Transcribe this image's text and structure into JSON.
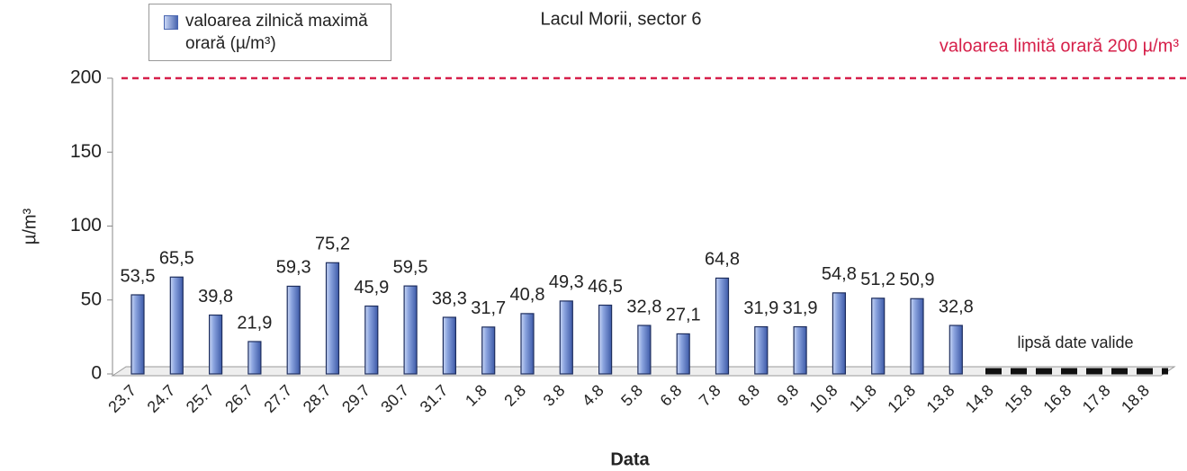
{
  "chart_data": {
    "type": "bar",
    "title": "Lacul Morii, sector 6",
    "x_label": "Data",
    "y_label": "µ/m³",
    "categories": [
      "23.7",
      "24.7",
      "25.7",
      "26.7",
      "27.7",
      "28.7",
      "29.7",
      "30.7",
      "31.7",
      "1.8",
      "2.8",
      "3.8",
      "4.8",
      "5.8",
      "6.8",
      "7.8",
      "8.8",
      "9.8",
      "10.8",
      "11.8",
      "12.8",
      "13.8",
      "14.8",
      "15.8",
      "16.8",
      "17.8",
      "18.8"
    ],
    "series": [
      {
        "name": "valoarea zilnică maximă orară (µ/m³)",
        "color": "#4a66b0",
        "values": [
          53.5,
          65.5,
          39.8,
          21.9,
          59.3,
          75.2,
          45.9,
          59.5,
          38.3,
          31.7,
          40.8,
          49.3,
          46.5,
          32.8,
          27.1,
          64.8,
          31.9,
          31.9,
          54.8,
          51.2,
          50.9,
          32.8,
          null,
          null,
          null,
          null,
          null
        ],
        "value_labels": [
          "53,5",
          "65,5",
          "39,8",
          "21,9",
          "59,3",
          "75,2",
          "45,9",
          "59,5",
          "38,3",
          "31,7",
          "40,8",
          "49,3",
          "46,5",
          "32,8",
          "27,1",
          "64,8",
          "31,9",
          "31,9",
          "54,8",
          "51,2",
          "50,9",
          "32,8",
          null,
          null,
          null,
          null,
          null
        ]
      }
    ],
    "threshold": {
      "value": 200,
      "label": "valoarea limită orară 200 µ/m³",
      "color": "#d6204a"
    },
    "annotation": "lipsă date valide",
    "ylim": [
      0,
      200
    ],
    "yticks": [
      0,
      50,
      100,
      150,
      200
    ]
  }
}
